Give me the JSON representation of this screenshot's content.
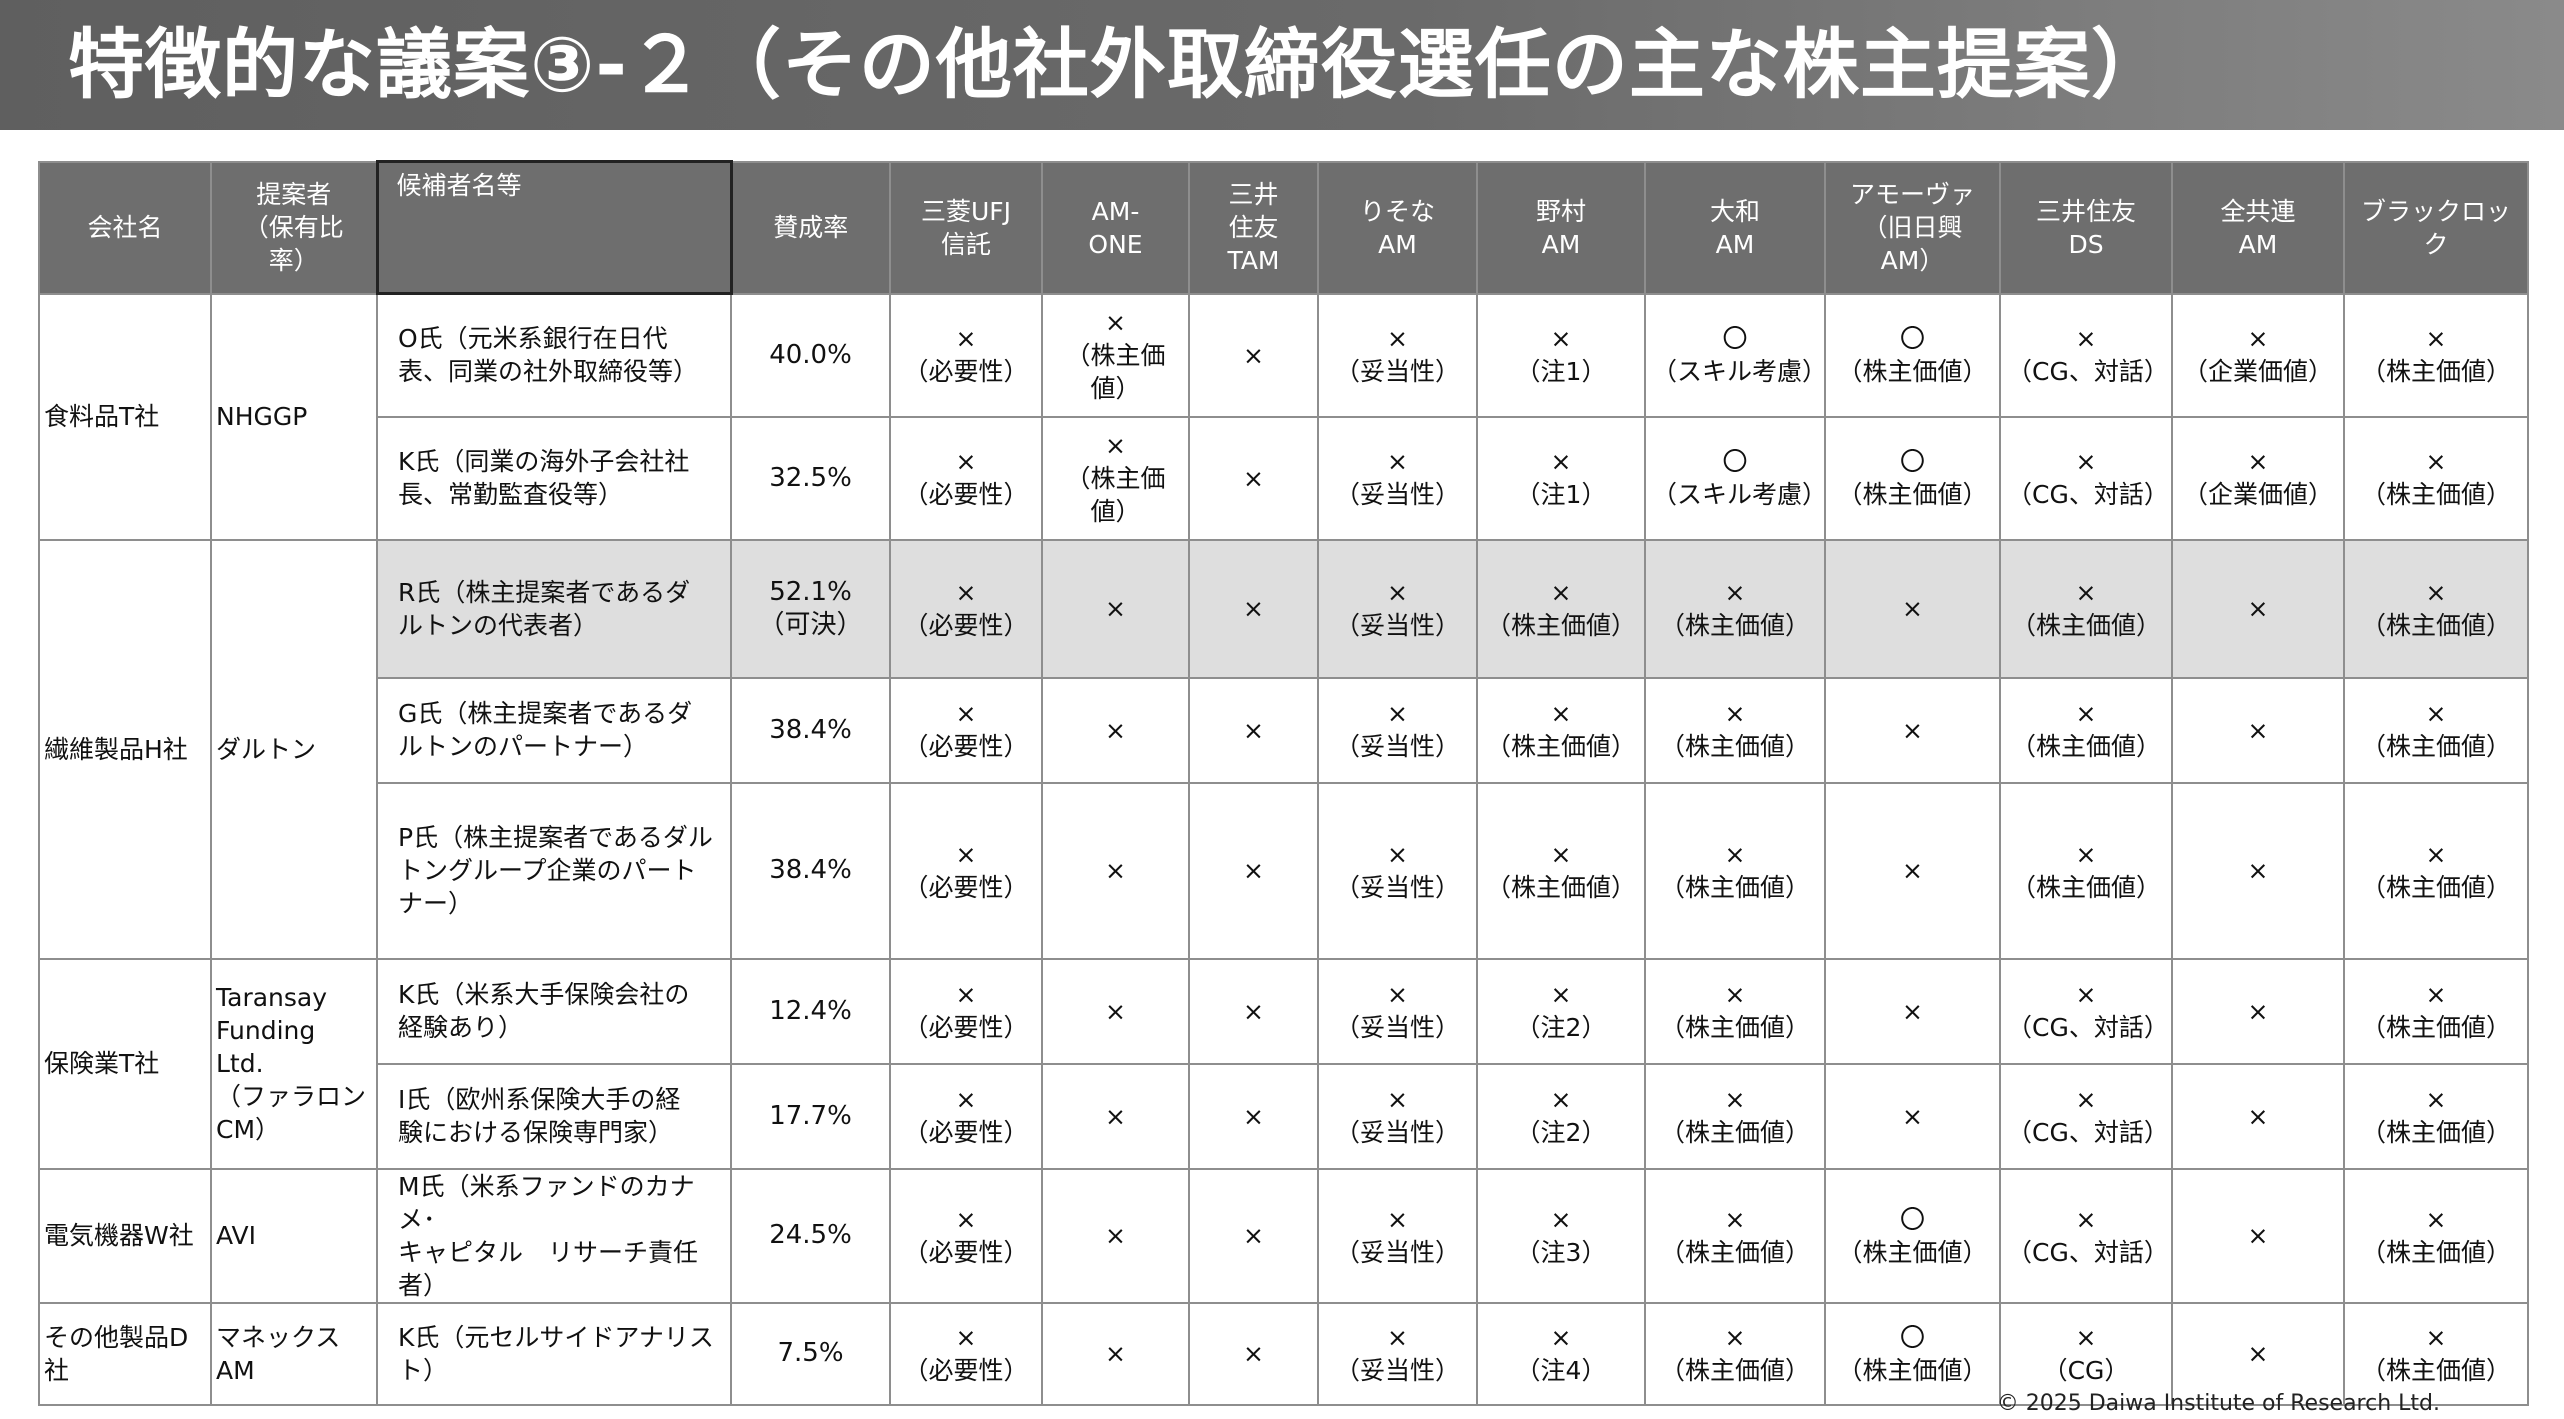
{
  "title": "特徴的な議案③-２（その他社外取締役選任の主な株主提案）",
  "headers": {
    "company": [
      "会社名"
    ],
    "proposer": [
      "提案者",
      "（保有比",
      "率）"
    ],
    "candidate": [
      "候補者名等"
    ],
    "approval": [
      "賛成率"
    ],
    "investors": [
      [
        "三菱UFJ",
        "信託"
      ],
      [
        "AM-",
        "ONE"
      ],
      [
        "三井",
        "住友",
        "TAM"
      ],
      [
        "りそな",
        "AM"
      ],
      [
        "野村",
        "AM"
      ],
      [
        "大和",
        "AM"
      ],
      [
        "アモーヴァ",
        "（旧日興",
        "AM）"
      ],
      [
        "三井住友",
        "DS"
      ],
      [
        "全共連",
        "AM"
      ],
      [
        "ブラックロック"
      ]
    ]
  },
  "groups": [
    {
      "company": [
        "食料品T社"
      ],
      "proposer": [
        "NHGGP"
      ],
      "rows": [
        {
          "candidate": [
            "O氏（元米系銀行在日代",
            "表、同業の社外取締役等）"
          ],
          "approval": [
            "40.0%"
          ],
          "votes": [
            [
              "×",
              "（必要性）"
            ],
            [
              "×",
              "（株主価値）"
            ],
            [
              "×"
            ],
            [
              "×",
              "（妥当性）"
            ],
            [
              "×",
              "（注1）"
            ],
            [
              "〇",
              "（スキル考慮）"
            ],
            [
              "〇",
              "（株主価値）"
            ],
            [
              "×",
              "（CG、対話）"
            ],
            [
              "×",
              "（企業価値）"
            ],
            [
              "×",
              "（株主価値）"
            ]
          ]
        },
        {
          "candidate": [
            "K氏（同業の海外子会社社",
            "長、常勤監査役等）"
          ],
          "approval": [
            "32.5%"
          ],
          "votes": [
            [
              "×",
              "（必要性）"
            ],
            [
              "×",
              "（株主価値）"
            ],
            [
              "×"
            ],
            [
              "×",
              "（妥当性）"
            ],
            [
              "×",
              "（注1）"
            ],
            [
              "〇",
              "（スキル考慮）"
            ],
            [
              "〇",
              "（株主価値）"
            ],
            [
              "×",
              "（CG、対話）"
            ],
            [
              "×",
              "（企業価値）"
            ],
            [
              "×",
              "（株主価値）"
            ]
          ]
        }
      ]
    },
    {
      "company": [
        "繊維製品H社"
      ],
      "proposer": [
        "ダルトン"
      ],
      "rows": [
        {
          "shaded": true,
          "candidate": [
            "R氏（株主提案者であるダ",
            "ルトンの代表者）"
          ],
          "approval": [
            "52.1%",
            "（可決）"
          ],
          "votes": [
            [
              "×",
              "（必要性）"
            ],
            [
              "×"
            ],
            [
              "×"
            ],
            [
              "×",
              "（妥当性）"
            ],
            [
              "×",
              "（株主価値）"
            ],
            [
              "×",
              "（株主価値）"
            ],
            [
              "×"
            ],
            [
              "×",
              "（株主価値）"
            ],
            [
              "×"
            ],
            [
              "×",
              "（株主価値）"
            ]
          ]
        },
        {
          "candidate": [
            "G氏（株主提案者であるダ",
            "ルトンのパートナー）"
          ],
          "approval": [
            "38.4%"
          ],
          "votes": [
            [
              "×",
              "（必要性）"
            ],
            [
              "×"
            ],
            [
              "×"
            ],
            [
              "×",
              "（妥当性）"
            ],
            [
              "×",
              "（株主価値）"
            ],
            [
              "×",
              "（株主価値）"
            ],
            [
              "×"
            ],
            [
              "×",
              "（株主価値）"
            ],
            [
              "×"
            ],
            [
              "×",
              "（株主価値）"
            ]
          ]
        },
        {
          "candidate": [
            "P氏（株主提案者であるダル",
            "トングループ企業のパート",
            "ナー）"
          ],
          "approval": [
            "38.4%"
          ],
          "votes": [
            [
              "×",
              "（必要性）"
            ],
            [
              "×"
            ],
            [
              "×"
            ],
            [
              "×",
              "（妥当性）"
            ],
            [
              "×",
              "（株主価値）"
            ],
            [
              "×",
              "（株主価値）"
            ],
            [
              "×"
            ],
            [
              "×",
              "（株主価値）"
            ],
            [
              "×"
            ],
            [
              "×",
              "（株主価値）"
            ]
          ]
        }
      ]
    },
    {
      "company": [
        "保険業T社"
      ],
      "proposer": [
        "Taransay",
        "Funding Ltd.",
        "（ファラロン",
        "CM）"
      ],
      "rows": [
        {
          "candidate": [
            "K氏（米系大手保険会社の",
            "経験あり）"
          ],
          "approval": [
            "12.4%"
          ],
          "votes": [
            [
              "×",
              "（必要性）"
            ],
            [
              "×"
            ],
            [
              "×"
            ],
            [
              "×",
              "（妥当性）"
            ],
            [
              "×",
              "（注2）"
            ],
            [
              "×",
              "（株主価値）"
            ],
            [
              "×"
            ],
            [
              "×",
              "（CG、対話）"
            ],
            [
              "×"
            ],
            [
              "×",
              "（株主価値）"
            ]
          ]
        },
        {
          "candidate": [
            "I氏（欧州系保険大手の経",
            "験における保険専門家）"
          ],
          "approval": [
            "17.7%"
          ],
          "votes": [
            [
              "×",
              "（必要性）"
            ],
            [
              "×"
            ],
            [
              "×"
            ],
            [
              "×",
              "（妥当性）"
            ],
            [
              "×",
              "（注2）"
            ],
            [
              "×",
              "（株主価値）"
            ],
            [
              "×"
            ],
            [
              "×",
              "（CG、対話）"
            ],
            [
              "×"
            ],
            [
              "×",
              "（株主価値）"
            ]
          ]
        }
      ]
    },
    {
      "company": [
        "電気機器W社"
      ],
      "proposer": [
        "AVI"
      ],
      "rows": [
        {
          "candidate": [
            "M氏（米系ファンドのカナメ･",
            "キャピタル　リサーチ責任者）"
          ],
          "approval": [
            "24.5%"
          ],
          "votes": [
            [
              "×",
              "（必要性）"
            ],
            [
              "×"
            ],
            [
              "×"
            ],
            [
              "×",
              "（妥当性）"
            ],
            [
              "×",
              "（注3）"
            ],
            [
              "×",
              "（株主価値）"
            ],
            [
              "〇",
              "（株主価値）"
            ],
            [
              "×",
              "（CG、対話）"
            ],
            [
              "×"
            ],
            [
              "×",
              "（株主価値）"
            ]
          ]
        }
      ]
    },
    {
      "company": [
        "その他製品D社"
      ],
      "proposer": [
        "マネックスAM"
      ],
      "rows": [
        {
          "candidate": [
            "K氏（元セルサイドアナリス",
            "ト）"
          ],
          "approval": [
            "7.5%"
          ],
          "votes": [
            [
              "×",
              "（必要性）"
            ],
            [
              "×"
            ],
            [
              "×"
            ],
            [
              "×",
              "（妥当性）"
            ],
            [
              "×",
              "（注4）"
            ],
            [
              "×",
              "（株主価値）"
            ],
            [
              "〇",
              "（株主価値）"
            ],
            [
              "×",
              "（CG）"
            ],
            [
              "×"
            ],
            [
              "×",
              "（株主価値）"
            ]
          ]
        }
      ]
    }
  ],
  "footer": "© 2025 Daiwa Institute of Research Ltd."
}
